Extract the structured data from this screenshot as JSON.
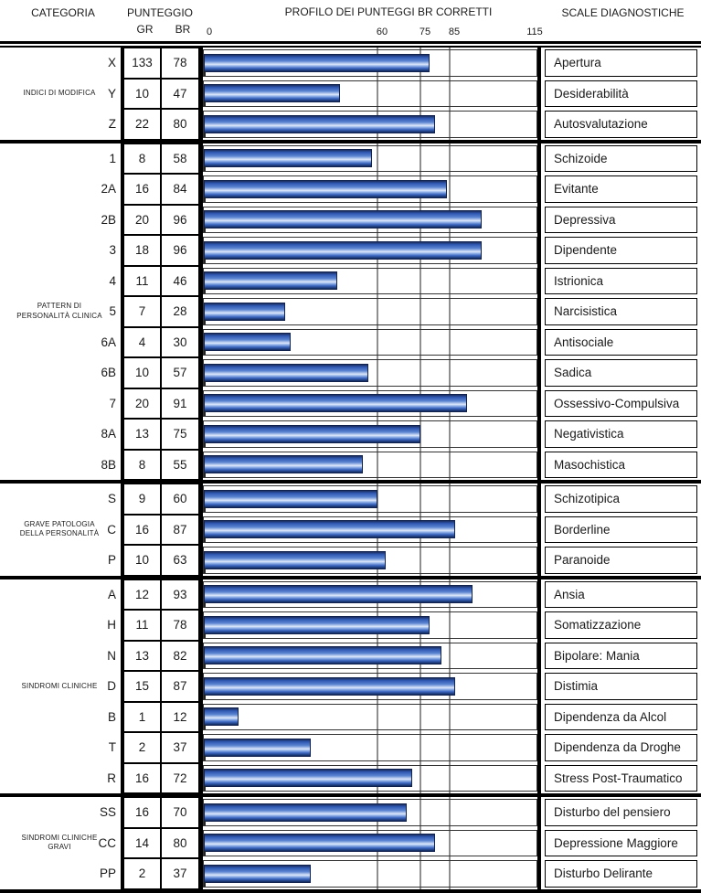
{
  "header": {
    "categoria": "CATEGORIA",
    "punteggio": "PUNTEGGIO",
    "gr": "GR",
    "br": "BR",
    "profilo": "PROFILO DEI PUNTEGGI BR CORRETTI",
    "scale_diagnostiche": "SCALE DIAGNOSTICHE"
  },
  "axis": {
    "min": 0,
    "max": 115,
    "tick_labels": [
      "0",
      "60",
      "75",
      "85",
      "115"
    ],
    "tick_values": [
      0,
      60,
      75,
      85,
      115
    ],
    "grid_values": [
      60,
      75,
      85
    ]
  },
  "colors": {
    "bar_dark": "#12285c",
    "bar_mid": "#2f57b2",
    "bar_highlight": "#dfe9fb",
    "grid": "#8f8f8f",
    "box_border": "#333333",
    "separator": "#000000"
  },
  "chart_data": {
    "type": "bar",
    "title": "PROFILO DEI PUNTEGGI BR CORRETTI",
    "value_column": "br",
    "xlim": [
      0,
      115
    ],
    "xticks": [
      0,
      60,
      75,
      85,
      115
    ],
    "grid": "on",
    "groups": [
      {
        "label": "INDICI DI MODIFICA",
        "rows": [
          {
            "code": "X",
            "gr": "133",
            "br": "78",
            "scale": "Apertura"
          },
          {
            "code": "Y",
            "gr": "10",
            "br": "47",
            "scale": "Desiderabilità"
          },
          {
            "code": "Z",
            "gr": "22",
            "br": "80",
            "scale": "Autosvalutazione"
          }
        ]
      },
      {
        "label": "PATTERN DI\nPERSONALITÀ CLINICA",
        "rows": [
          {
            "code": "1",
            "gr": "8",
            "br": "58",
            "scale": "Schizoide"
          },
          {
            "code": "2A",
            "gr": "16",
            "br": "84",
            "scale": "Evitante"
          },
          {
            "code": "2B",
            "gr": "20",
            "br": "96",
            "scale": "Depressiva"
          },
          {
            "code": "3",
            "gr": "18",
            "br": "96",
            "scale": "Dipendente"
          },
          {
            "code": "4",
            "gr": "11",
            "br": "46",
            "scale": "Istrionica"
          },
          {
            "code": "5",
            "gr": "7",
            "br": "28",
            "scale": "Narcisistica"
          },
          {
            "code": "6A",
            "gr": "4",
            "br": "30",
            "scale": "Antisociale"
          },
          {
            "code": "6B",
            "gr": "10",
            "br": "57",
            "scale": "Sadica"
          },
          {
            "code": "7",
            "gr": "20",
            "br": "91",
            "scale": "Ossessivo-Compulsiva"
          },
          {
            "code": "8A",
            "gr": "13",
            "br": "75",
            "scale": "Negativistica"
          },
          {
            "code": "8B",
            "gr": "8",
            "br": "55",
            "scale": "Masochistica"
          }
        ]
      },
      {
        "label": "GRAVE PATOLOGIA\nDELLA PERSONALITÀ",
        "rows": [
          {
            "code": "S",
            "gr": "9",
            "br": "60",
            "scale": "Schizotipica"
          },
          {
            "code": "C",
            "gr": "16",
            "br": "87",
            "scale": "Borderline"
          },
          {
            "code": "P",
            "gr": "10",
            "br": "63",
            "scale": "Paranoide"
          }
        ]
      },
      {
        "label": "SINDROMI CLINICHE",
        "rows": [
          {
            "code": "A",
            "gr": "12",
            "br": "93",
            "scale": "Ansia"
          },
          {
            "code": "H",
            "gr": "11",
            "br": "78",
            "scale": "Somatizzazione"
          },
          {
            "code": "N",
            "gr": "13",
            "br": "82",
            "scale": "Bipolare: Mania"
          },
          {
            "code": "D",
            "gr": "15",
            "br": "87",
            "scale": "Distimia"
          },
          {
            "code": "B",
            "gr": "1",
            "br": "12",
            "scale": "Dipendenza da Alcol"
          },
          {
            "code": "T",
            "gr": "2",
            "br": "37",
            "scale": "Dipendenza da Droghe"
          },
          {
            "code": "R",
            "gr": "16",
            "br": "72",
            "scale": "Stress Post-Traumatico"
          }
        ]
      },
      {
        "label": "SINDROMI CLINICHE\nGRAVI",
        "rows": [
          {
            "code": "SS",
            "gr": "16",
            "br": "70",
            "scale": "Disturbo del pensiero"
          },
          {
            "code": "CC",
            "gr": "14",
            "br": "80",
            "scale": "Depressione Maggiore"
          },
          {
            "code": "PP",
            "gr": "2",
            "br": "37",
            "scale": "Disturbo Delirante"
          }
        ]
      }
    ]
  }
}
